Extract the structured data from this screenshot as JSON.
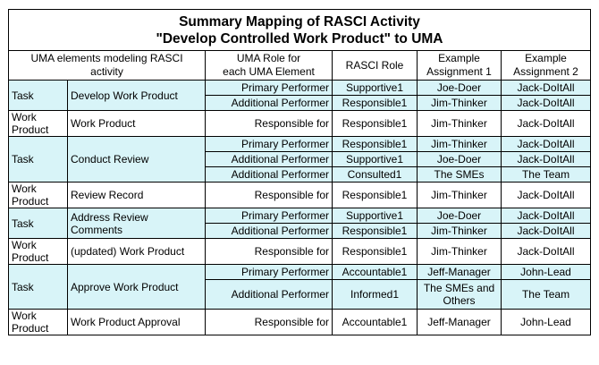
{
  "title": {
    "line1": "Summary Mapping of RASCI Activity",
    "line2": "\"Develop Controlled Work Product\" to UMA"
  },
  "headers": {
    "uma_elements_1": "UMA elements modeling RASCI",
    "uma_elements_2": "activity",
    "uma_role_1": "UMA Role for",
    "uma_role_2": "each UMA Element",
    "rasci_role": "RASCI Role",
    "example1_1": "Example",
    "example1_2": "Assignment 1",
    "example2_1": "Example",
    "example2_2": "Assignment 2"
  },
  "rows": [
    {
      "type": "Task",
      "element": "Develop Work Product",
      "shade": "cyan",
      "rows": [
        {
          "uma_role": "Primary Performer",
          "rasci": "Supportive1",
          "ex1": "Joe-Doer",
          "ex2": "Jack-DoItAll"
        },
        {
          "uma_role": "Additional Performer",
          "rasci": "Responsible1",
          "ex1": "Jim-Thinker",
          "ex2": "Jack-DoItAll"
        }
      ]
    },
    {
      "type": "Work Product",
      "element": "Work Product",
      "shade": "white",
      "rows": [
        {
          "uma_role": "Responsible for",
          "rasci": "Responsible1",
          "ex1": "Jim-Thinker",
          "ex2": "Jack-DoItAll"
        }
      ]
    },
    {
      "type": "Task",
      "element": "Conduct Review",
      "shade": "cyan",
      "rows": [
        {
          "uma_role": "Primary Performer",
          "rasci": "Responsible1",
          "ex1": "Jim-Thinker",
          "ex2": "Jack-DoItAll"
        },
        {
          "uma_role": "Additional Performer",
          "rasci": "Supportive1",
          "ex1": "Joe-Doer",
          "ex2": "Jack-DoItAll"
        },
        {
          "uma_role": "Additional Performer",
          "rasci": "Consulted1",
          "ex1": "The SMEs",
          "ex2": "The Team"
        }
      ]
    },
    {
      "type": "Work Product",
      "element": "Review Record",
      "shade": "white",
      "rows": [
        {
          "uma_role": "Responsible for",
          "rasci": "Responsible1",
          "ex1": "Jim-Thinker",
          "ex2": "Jack-DoItAll"
        }
      ]
    },
    {
      "type": "Task",
      "element": "Address Review Comments",
      "shade": "cyan",
      "rows": [
        {
          "uma_role": "Primary Performer",
          "rasci": "Supportive1",
          "ex1": "Joe-Doer",
          "ex2": "Jack-DoItAll"
        },
        {
          "uma_role": "Additional Performer",
          "rasci": "Responsible1",
          "ex1": "Jim-Thinker",
          "ex2": "Jack-DoItAll"
        }
      ]
    },
    {
      "type": "Work Product",
      "element": "(updated) Work Product",
      "shade": "white",
      "rows": [
        {
          "uma_role": "Responsible for",
          "rasci": "Responsible1",
          "ex1": "Jim-Thinker",
          "ex2": "Jack-DoItAll"
        }
      ]
    },
    {
      "type": "Task",
      "element": "Approve Work Product",
      "shade": "cyan",
      "rows": [
        {
          "uma_role": "Primary Performer",
          "rasci": "Accountable1",
          "ex1": "Jeff-Manager",
          "ex2": "John-Lead"
        },
        {
          "uma_role": "Additional Performer",
          "rasci": "Informed1",
          "ex1": "The SMEs and Others",
          "ex2": "The Team",
          "tall": true
        }
      ]
    },
    {
      "type": "Work Product",
      "element": "Work Product Approval",
      "shade": "white",
      "rows": [
        {
          "uma_role": "Responsible for",
          "rasci": "Accountable1",
          "ex1": "Jeff-Manager",
          "ex2": "John-Lead"
        }
      ]
    }
  ]
}
